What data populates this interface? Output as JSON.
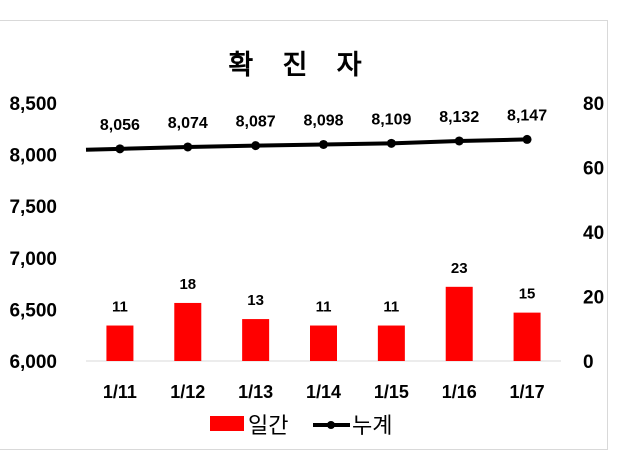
{
  "chart_data": {
    "type": "bar",
    "title": "확 진 자",
    "categories": [
      "1/11",
      "1/12",
      "1/13",
      "1/14",
      "1/15",
      "1/16",
      "1/17"
    ],
    "series": [
      {
        "name": "일간",
        "type": "bar",
        "axis": "right",
        "color": "#ff0000",
        "values": [
          11,
          18,
          13,
          11,
          11,
          23,
          15
        ],
        "labels": [
          "11",
          "18",
          "13",
          "11",
          "11",
          "23",
          "15"
        ]
      },
      {
        "name": "누계",
        "type": "line",
        "axis": "left",
        "color": "#000000",
        "values": [
          8056,
          8074,
          8087,
          8098,
          8109,
          8132,
          8147
        ],
        "labels": [
          "8,056",
          "8,074",
          "8,087",
          "8,098",
          "8,109",
          "8,132",
          "8,147"
        ]
      }
    ],
    "y_left": {
      "ylim": [
        6000,
        8500
      ],
      "ticks": [
        "6,000",
        "6,500",
        "7,000",
        "7,500",
        "8,000",
        "8,500"
      ]
    },
    "y_right": {
      "ylim": [
        0,
        80
      ],
      "ticks": [
        "0",
        "20",
        "40",
        "60",
        "80"
      ]
    },
    "grid": false,
    "legend": "bottom"
  }
}
